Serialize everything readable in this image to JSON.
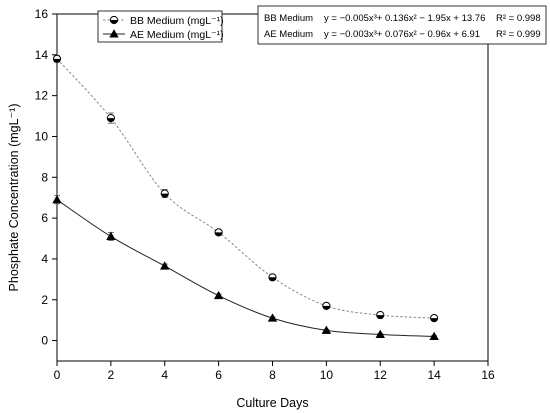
{
  "chart_data": {
    "type": "line",
    "title": "",
    "xlabel": "Culture Days",
    "ylabel": "Phosphate Concentration (mgL⁻¹)",
    "xlim": [
      0,
      16
    ],
    "ylim": [
      -1,
      16
    ],
    "xticks": [
      0,
      2,
      4,
      6,
      8,
      10,
      12,
      14,
      16
    ],
    "yticks": [
      0,
      2,
      4,
      6,
      8,
      10,
      12,
      14,
      16
    ],
    "grid": false,
    "legend_position": "top-left",
    "series": [
      {
        "name": "BB Medium (mgL⁻¹)",
        "marker": "half-filled-circle",
        "line_style": "dotted",
        "color": "#888888",
        "x": [
          0,
          2,
          4,
          6,
          8,
          10,
          12,
          14
        ],
        "y": [
          13.8,
          10.9,
          7.2,
          5.3,
          3.1,
          1.7,
          1.25,
          1.1
        ],
        "error": [
          0.15,
          0.25,
          0.2,
          0.12,
          0.1,
          0.08,
          0.06,
          0.06
        ],
        "fit": "y = −0.005x³+ 0.136x² − 1.95x + 13.76",
        "r2": "R² = 0.998"
      },
      {
        "name": "AE Medium (mgL⁻¹)",
        "marker": "filled-triangle",
        "line_style": "solid",
        "color": "#222222",
        "x": [
          0,
          2,
          4,
          6,
          8,
          10,
          12,
          14
        ],
        "y": [
          6.9,
          5.1,
          3.65,
          2.2,
          1.1,
          0.5,
          0.3,
          0.2
        ],
        "error": [
          0.2,
          0.2,
          0.1,
          0.08,
          0.06,
          0.05,
          0.04,
          0.04
        ],
        "fit": "y = −0.003x³+ 0.076x² − 0.96x + 6.91",
        "r2": "R² = 0.999"
      }
    ],
    "equation_box": [
      {
        "label": "BB Medium",
        "equation": "y = −0.005x³+ 0.136x² − 1.95x + 13.76",
        "r2": "R² = 0.998"
      },
      {
        "label": "AE Medium",
        "equation": "y = −0.003x³+ 0.076x² − 0.96x + 6.91",
        "r2": "R² = 0.999"
      }
    ]
  }
}
